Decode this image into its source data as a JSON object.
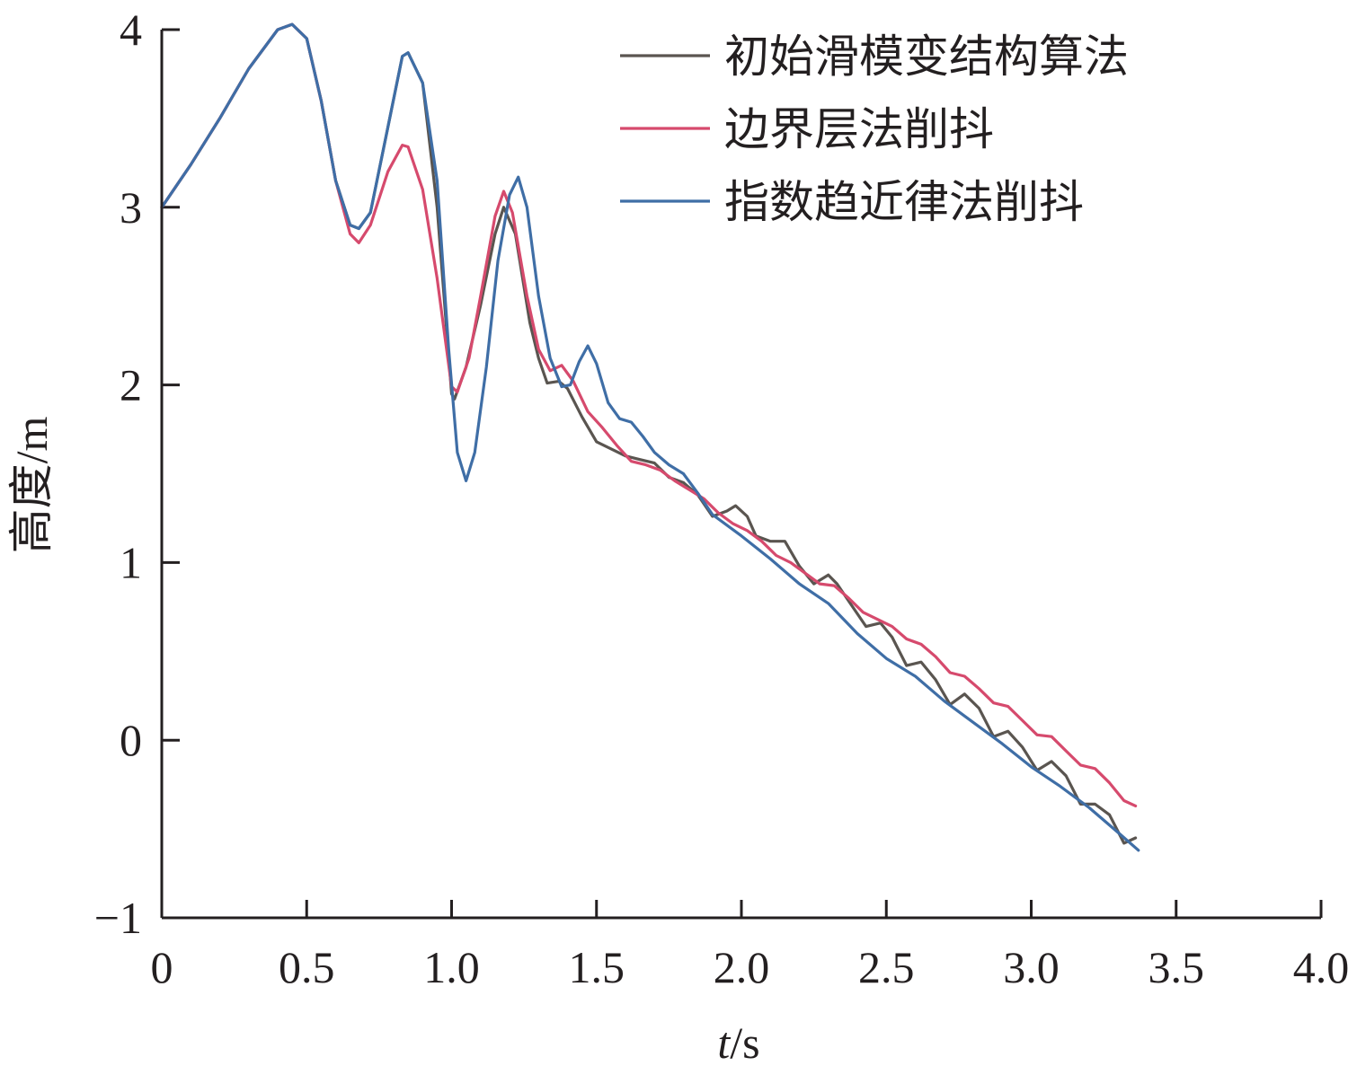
{
  "chart_data": {
    "type": "line",
    "xlabel_italic": "t",
    "xlabel_unit": "/s",
    "ylabel": "高度/m",
    "xlim": [
      0,
      4.0
    ],
    "ylim": [
      -1,
      4
    ],
    "xticks": [
      0,
      0.5,
      1.0,
      1.5,
      2.0,
      2.5,
      3.0,
      3.5,
      4.0
    ],
    "xtick_labels": [
      "0",
      "0.5",
      "1.0",
      "1.5",
      "2.0",
      "2.5",
      "3.0",
      "3.5",
      "4.0"
    ],
    "yticks": [
      -1,
      0,
      1,
      2,
      3,
      4
    ],
    "ytick_labels": [
      "−1",
      "0",
      "1",
      "2",
      "3",
      "4"
    ],
    "grid": false,
    "legend_position": "top-right",
    "series": [
      {
        "name": "初始滑模变结构算法",
        "color": "#5a5550",
        "points": [
          [
            0,
            3.0
          ],
          [
            0.1,
            3.24
          ],
          [
            0.2,
            3.5
          ],
          [
            0.3,
            3.78
          ],
          [
            0.4,
            4.0
          ],
          [
            0.45,
            4.03
          ],
          [
            0.5,
            3.95
          ],
          [
            0.55,
            3.6
          ],
          [
            0.6,
            3.15
          ],
          [
            0.65,
            2.9
          ],
          [
            0.68,
            2.88
          ],
          [
            0.72,
            2.97
          ],
          [
            0.78,
            3.45
          ],
          [
            0.83,
            3.85
          ],
          [
            0.85,
            3.87
          ],
          [
            0.9,
            3.7
          ],
          [
            0.95,
            3.0
          ],
          [
            1.0,
            1.95
          ],
          [
            1.01,
            1.92
          ],
          [
            1.05,
            2.1
          ],
          [
            1.1,
            2.45
          ],
          [
            1.15,
            2.85
          ],
          [
            1.18,
            3.0
          ],
          [
            1.22,
            2.85
          ],
          [
            1.27,
            2.35
          ],
          [
            1.3,
            2.15
          ],
          [
            1.33,
            2.01
          ],
          [
            1.37,
            2.02
          ],
          [
            1.4,
            1.98
          ],
          [
            1.45,
            1.82
          ],
          [
            1.5,
            1.68
          ],
          [
            1.55,
            1.64
          ],
          [
            1.6,
            1.6
          ],
          [
            1.65,
            1.58
          ],
          [
            1.7,
            1.56
          ],
          [
            1.75,
            1.48
          ],
          [
            1.8,
            1.45
          ],
          [
            1.85,
            1.38
          ],
          [
            1.9,
            1.26
          ],
          [
            1.95,
            1.29
          ],
          [
            1.98,
            1.32
          ],
          [
            2.02,
            1.26
          ],
          [
            2.05,
            1.15
          ],
          [
            2.1,
            1.12
          ],
          [
            2.15,
            1.12
          ],
          [
            2.2,
            0.98
          ],
          [
            2.25,
            0.88
          ],
          [
            2.3,
            0.93
          ],
          [
            2.33,
            0.88
          ],
          [
            2.38,
            0.76
          ],
          [
            2.43,
            0.64
          ],
          [
            2.48,
            0.66
          ],
          [
            2.52,
            0.58
          ],
          [
            2.57,
            0.42
          ],
          [
            2.62,
            0.44
          ],
          [
            2.67,
            0.34
          ],
          [
            2.72,
            0.2
          ],
          [
            2.77,
            0.26
          ],
          [
            2.82,
            0.18
          ],
          [
            2.87,
            0.02
          ],
          [
            2.92,
            0.05
          ],
          [
            2.97,
            -0.04
          ],
          [
            3.02,
            -0.17
          ],
          [
            3.07,
            -0.12
          ],
          [
            3.12,
            -0.2
          ],
          [
            3.17,
            -0.36
          ],
          [
            3.22,
            -0.36
          ],
          [
            3.27,
            -0.42
          ],
          [
            3.32,
            -0.58
          ],
          [
            3.36,
            -0.55
          ]
        ]
      },
      {
        "name": "边界层法削抖",
        "color": "#d64a6d",
        "points": [
          [
            0,
            3.0
          ],
          [
            0.1,
            3.24
          ],
          [
            0.2,
            3.5
          ],
          [
            0.3,
            3.78
          ],
          [
            0.4,
            4.0
          ],
          [
            0.45,
            4.03
          ],
          [
            0.5,
            3.95
          ],
          [
            0.55,
            3.6
          ],
          [
            0.6,
            3.15
          ],
          [
            0.65,
            2.85
          ],
          [
            0.68,
            2.8
          ],
          [
            0.72,
            2.9
          ],
          [
            0.78,
            3.2
          ],
          [
            0.83,
            3.35
          ],
          [
            0.85,
            3.34
          ],
          [
            0.9,
            3.1
          ],
          [
            0.95,
            2.6
          ],
          [
            1.0,
            1.99
          ],
          [
            1.02,
            1.96
          ],
          [
            1.06,
            2.15
          ],
          [
            1.1,
            2.5
          ],
          [
            1.15,
            2.95
          ],
          [
            1.18,
            3.09
          ],
          [
            1.21,
            2.97
          ],
          [
            1.26,
            2.5
          ],
          [
            1.3,
            2.2
          ],
          [
            1.34,
            2.08
          ],
          [
            1.38,
            2.11
          ],
          [
            1.42,
            2.02
          ],
          [
            1.47,
            1.85
          ],
          [
            1.52,
            1.76
          ],
          [
            1.57,
            1.66
          ],
          [
            1.62,
            1.57
          ],
          [
            1.67,
            1.55
          ],
          [
            1.72,
            1.52
          ],
          [
            1.77,
            1.46
          ],
          [
            1.82,
            1.41
          ],
          [
            1.87,
            1.36
          ],
          [
            1.92,
            1.28
          ],
          [
            1.97,
            1.22
          ],
          [
            2.02,
            1.18
          ],
          [
            2.07,
            1.12
          ],
          [
            2.12,
            1.04
          ],
          [
            2.17,
            1.0
          ],
          [
            2.22,
            0.94
          ],
          [
            2.27,
            0.88
          ],
          [
            2.32,
            0.87
          ],
          [
            2.37,
            0.8
          ],
          [
            2.42,
            0.72
          ],
          [
            2.47,
            0.68
          ],
          [
            2.52,
            0.64
          ],
          [
            2.57,
            0.57
          ],
          [
            2.62,
            0.54
          ],
          [
            2.67,
            0.47
          ],
          [
            2.72,
            0.38
          ],
          [
            2.77,
            0.36
          ],
          [
            2.82,
            0.29
          ],
          [
            2.87,
            0.21
          ],
          [
            2.92,
            0.19
          ],
          [
            2.97,
            0.11
          ],
          [
            3.02,
            0.03
          ],
          [
            3.07,
            0.02
          ],
          [
            3.12,
            -0.06
          ],
          [
            3.17,
            -0.14
          ],
          [
            3.22,
            -0.16
          ],
          [
            3.27,
            -0.24
          ],
          [
            3.32,
            -0.34
          ],
          [
            3.36,
            -0.37
          ]
        ]
      },
      {
        "name": "指数趋近律法削抖",
        "color": "#3f6ea6",
        "points": [
          [
            0,
            3.0
          ],
          [
            0.1,
            3.24
          ],
          [
            0.2,
            3.5
          ],
          [
            0.3,
            3.78
          ],
          [
            0.4,
            4.0
          ],
          [
            0.45,
            4.03
          ],
          [
            0.5,
            3.95
          ],
          [
            0.55,
            3.6
          ],
          [
            0.6,
            3.15
          ],
          [
            0.65,
            2.9
          ],
          [
            0.68,
            2.88
          ],
          [
            0.72,
            2.97
          ],
          [
            0.78,
            3.45
          ],
          [
            0.83,
            3.85
          ],
          [
            0.85,
            3.87
          ],
          [
            0.9,
            3.7
          ],
          [
            0.95,
            3.15
          ],
          [
            0.99,
            2.2
          ],
          [
            1.02,
            1.62
          ],
          [
            1.05,
            1.46
          ],
          [
            1.08,
            1.62
          ],
          [
            1.12,
            2.1
          ],
          [
            1.16,
            2.7
          ],
          [
            1.2,
            3.07
          ],
          [
            1.23,
            3.17
          ],
          [
            1.26,
            3.0
          ],
          [
            1.3,
            2.5
          ],
          [
            1.34,
            2.15
          ],
          [
            1.38,
            1.99
          ],
          [
            1.41,
            2.0
          ],
          [
            1.44,
            2.13
          ],
          [
            1.47,
            2.22
          ],
          [
            1.5,
            2.12
          ],
          [
            1.54,
            1.9
          ],
          [
            1.58,
            1.81
          ],
          [
            1.62,
            1.79
          ],
          [
            1.66,
            1.71
          ],
          [
            1.7,
            1.62
          ],
          [
            1.75,
            1.55
          ],
          [
            1.8,
            1.5
          ],
          [
            1.85,
            1.39
          ],
          [
            1.9,
            1.27
          ],
          [
            2.0,
            1.15
          ],
          [
            2.1,
            1.02
          ],
          [
            2.2,
            0.88
          ],
          [
            2.3,
            0.77
          ],
          [
            2.4,
            0.6
          ],
          [
            2.5,
            0.46
          ],
          [
            2.6,
            0.36
          ],
          [
            2.7,
            0.22
          ],
          [
            2.8,
            0.1
          ],
          [
            2.9,
            -0.02
          ],
          [
            3.0,
            -0.15
          ],
          [
            3.1,
            -0.26
          ],
          [
            3.2,
            -0.38
          ],
          [
            3.3,
            -0.52
          ],
          [
            3.37,
            -0.62
          ]
        ]
      }
    ]
  }
}
